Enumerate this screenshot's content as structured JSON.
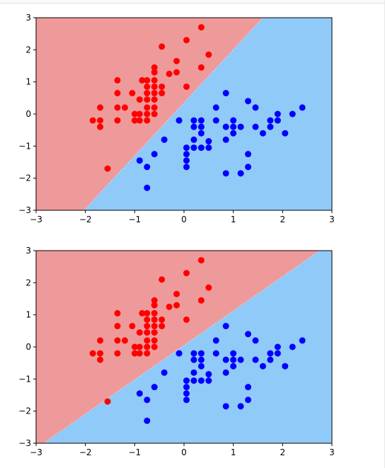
{
  "colors": {
    "region_a": "#ef9a9a",
    "region_b": "#90caf9",
    "class_a": "#ff0000",
    "class_b": "#0000ff"
  },
  "chart_data": [
    {
      "type": "scatter",
      "title": "",
      "xlabel": "",
      "ylabel": "",
      "xlim": [
        -3,
        3
      ],
      "ylim": [
        -3,
        3
      ],
      "grid": false,
      "xticks": [
        "−3",
        "−2",
        "−1",
        "0",
        "1",
        "2",
        "3"
      ],
      "yticks": [
        "−3",
        "−2",
        "−1",
        "0",
        "1",
        "2",
        "3"
      ],
      "decision_boundary": {
        "points": [
          [
            -2.03,
            -3
          ],
          [
            1.6,
            3
          ]
        ]
      },
      "series": [
        {
          "class": "a",
          "points": [
            [
              -1.85,
              -0.2
            ],
            [
              -1.7,
              0.2
            ],
            [
              -1.7,
              -0.2
            ],
            [
              -1.7,
              -0.4
            ],
            [
              -1.55,
              -1.7
            ],
            [
              -1.35,
              1.05
            ],
            [
              -1.35,
              0.65
            ],
            [
              -1.35,
              0.2
            ],
            [
              -1.35,
              -0.2
            ],
            [
              -1.2,
              0.2
            ],
            [
              -1.05,
              0.65
            ],
            [
              -1.0,
              0.0
            ],
            [
              -1.0,
              -0.2
            ],
            [
              -0.9,
              0.45
            ],
            [
              -0.9,
              0.0
            ],
            [
              -0.9,
              -0.2
            ],
            [
              -0.85,
              1.05
            ],
            [
              -0.75,
              1.05
            ],
            [
              -0.75,
              0.85
            ],
            [
              -0.75,
              0.65
            ],
            [
              -0.75,
              0.45
            ],
            [
              -0.75,
              0.2
            ],
            [
              -0.75,
              -0.0
            ],
            [
              -0.75,
              -0.2
            ],
            [
              -0.6,
              1.45
            ],
            [
              -0.6,
              1.3
            ],
            [
              -0.6,
              1.05
            ],
            [
              -0.6,
              0.85
            ],
            [
              -0.6,
              0.65
            ],
            [
              -0.6,
              0.45
            ],
            [
              -0.6,
              0.2
            ],
            [
              -0.6,
              0.0
            ],
            [
              -0.45,
              2.1
            ],
            [
              -0.45,
              0.85
            ],
            [
              -0.45,
              0.65
            ],
            [
              -0.3,
              1.25
            ],
            [
              -0.15,
              1.65
            ],
            [
              -0.15,
              1.3
            ],
            [
              0.05,
              2.3
            ],
            [
              0.05,
              0.85
            ],
            [
              0.35,
              2.7
            ],
            [
              0.35,
              1.45
            ],
            [
              0.5,
              1.85
            ]
          ]
        },
        {
          "class": "b",
          "points": [
            [
              -0.9,
              -1.45
            ],
            [
              -0.75,
              -1.65
            ],
            [
              -0.75,
              -2.3
            ],
            [
              -0.6,
              -1.25
            ],
            [
              -0.4,
              -0.8
            ],
            [
              -0.1,
              -0.2
            ],
            [
              0.05,
              -1.05
            ],
            [
              0.05,
              -1.25
            ],
            [
              0.05,
              -1.45
            ],
            [
              0.05,
              -1.65
            ],
            [
              0.2,
              -0.2
            ],
            [
              0.2,
              -0.4
            ],
            [
              0.2,
              -0.8
            ],
            [
              0.2,
              -1.05
            ],
            [
              0.35,
              -0.2
            ],
            [
              0.35,
              -0.4
            ],
            [
              0.35,
              -0.6
            ],
            [
              0.35,
              -1.05
            ],
            [
              0.5,
              -0.85
            ],
            [
              0.5,
              -1.05
            ],
            [
              0.65,
              0.2
            ],
            [
              0.65,
              -0.2
            ],
            [
              0.85,
              0.65
            ],
            [
              0.85,
              -0.4
            ],
            [
              0.85,
              -0.8
            ],
            [
              0.85,
              -1.85
            ],
            [
              1.0,
              -0.2
            ],
            [
              1.0,
              -0.4
            ],
            [
              1.0,
              -0.6
            ],
            [
              1.15,
              -0.4
            ],
            [
              1.15,
              -1.85
            ],
            [
              1.3,
              0.4
            ],
            [
              1.3,
              -1.25
            ],
            [
              1.3,
              -1.65
            ],
            [
              1.45,
              0.2
            ],
            [
              1.45,
              -0.4
            ],
            [
              1.6,
              -0.6
            ],
            [
              1.75,
              -0.2
            ],
            [
              1.75,
              -0.4
            ],
            [
              1.9,
              0.0
            ],
            [
              1.9,
              -0.2
            ],
            [
              2.05,
              -0.6
            ],
            [
              2.2,
              0.0
            ],
            [
              2.4,
              0.2
            ]
          ]
        }
      ]
    },
    {
      "type": "scatter",
      "title": "",
      "xlabel": "",
      "ylabel": "",
      "xlim": [
        -3,
        3
      ],
      "ylim": [
        -3,
        3
      ],
      "grid": false,
      "xticks": [
        "−3",
        "−2",
        "−1",
        "0",
        "1",
        "2",
        "3"
      ],
      "yticks": [
        "−3",
        "−2",
        "−1",
        "0",
        "1",
        "2",
        "3"
      ],
      "decision_boundary": {
        "points": [
          [
            -2.85,
            -3
          ],
          [
            2.75,
            3
          ]
        ]
      },
      "series": [
        {
          "class": "a",
          "points": [
            [
              -1.85,
              -0.2
            ],
            [
              -1.7,
              0.2
            ],
            [
              -1.7,
              -0.2
            ],
            [
              -1.7,
              -0.4
            ],
            [
              -1.55,
              -1.7
            ],
            [
              -1.35,
              1.05
            ],
            [
              -1.35,
              0.65
            ],
            [
              -1.35,
              0.2
            ],
            [
              -1.35,
              -0.2
            ],
            [
              -1.2,
              0.2
            ],
            [
              -1.05,
              0.65
            ],
            [
              -1.0,
              0.0
            ],
            [
              -1.0,
              -0.2
            ],
            [
              -0.9,
              0.45
            ],
            [
              -0.9,
              0.0
            ],
            [
              -0.9,
              -0.2
            ],
            [
              -0.85,
              1.05
            ],
            [
              -0.75,
              1.05
            ],
            [
              -0.75,
              0.85
            ],
            [
              -0.75,
              0.65
            ],
            [
              -0.75,
              0.45
            ],
            [
              -0.75,
              0.2
            ],
            [
              -0.75,
              -0.0
            ],
            [
              -0.75,
              -0.2
            ],
            [
              -0.6,
              1.45
            ],
            [
              -0.6,
              1.3
            ],
            [
              -0.6,
              1.05
            ],
            [
              -0.6,
              0.85
            ],
            [
              -0.6,
              0.65
            ],
            [
              -0.6,
              0.45
            ],
            [
              -0.6,
              0.2
            ],
            [
              -0.6,
              0.0
            ],
            [
              -0.45,
              2.1
            ],
            [
              -0.45,
              0.85
            ],
            [
              -0.45,
              0.65
            ],
            [
              -0.3,
              1.25
            ],
            [
              -0.15,
              1.65
            ],
            [
              -0.15,
              1.3
            ],
            [
              0.05,
              2.3
            ],
            [
              0.05,
              0.85
            ],
            [
              0.35,
              2.7
            ],
            [
              0.35,
              1.45
            ],
            [
              0.5,
              1.85
            ]
          ]
        },
        {
          "class": "b",
          "points": [
            [
              -0.9,
              -1.45
            ],
            [
              -0.75,
              -1.65
            ],
            [
              -0.75,
              -2.3
            ],
            [
              -0.6,
              -1.25
            ],
            [
              -0.4,
              -0.8
            ],
            [
              -0.1,
              -0.2
            ],
            [
              0.05,
              -1.05
            ],
            [
              0.05,
              -1.25
            ],
            [
              0.05,
              -1.45
            ],
            [
              0.05,
              -1.65
            ],
            [
              0.2,
              -0.2
            ],
            [
              0.2,
              -0.4
            ],
            [
              0.2,
              -0.8
            ],
            [
              0.2,
              -1.05
            ],
            [
              0.35,
              -0.2
            ],
            [
              0.35,
              -0.4
            ],
            [
              0.35,
              -0.6
            ],
            [
              0.35,
              -1.05
            ],
            [
              0.5,
              -0.85
            ],
            [
              0.5,
              -1.05
            ],
            [
              0.65,
              0.2
            ],
            [
              0.65,
              -0.2
            ],
            [
              0.85,
              0.65
            ],
            [
              0.85,
              -0.4
            ],
            [
              0.85,
              -0.8
            ],
            [
              0.85,
              -1.85
            ],
            [
              1.0,
              -0.2
            ],
            [
              1.0,
              -0.4
            ],
            [
              1.0,
              -0.6
            ],
            [
              1.15,
              -0.4
            ],
            [
              1.15,
              -1.85
            ],
            [
              1.3,
              0.4
            ],
            [
              1.3,
              -1.25
            ],
            [
              1.3,
              -1.65
            ],
            [
              1.45,
              0.2
            ],
            [
              1.45,
              -0.4
            ],
            [
              1.6,
              -0.6
            ],
            [
              1.75,
              -0.2
            ],
            [
              1.75,
              -0.4
            ],
            [
              1.9,
              0.0
            ],
            [
              1.9,
              -0.2
            ],
            [
              2.05,
              -0.6
            ],
            [
              2.2,
              0.0
            ],
            [
              2.4,
              0.2
            ]
          ]
        }
      ]
    }
  ]
}
